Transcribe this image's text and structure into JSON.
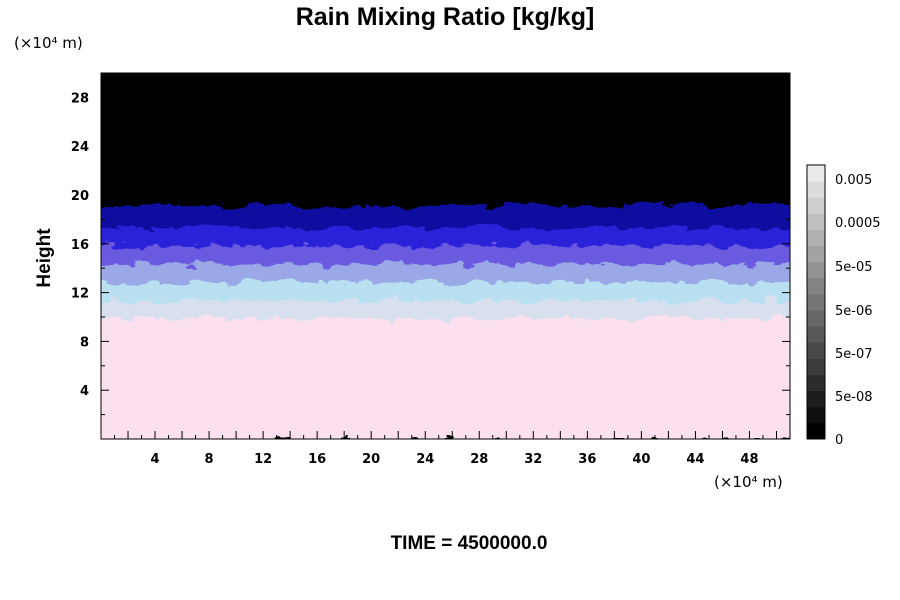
{
  "chart_data": {
    "type": "heatmap",
    "title": "Rain Mixing Ratio [kg/kg]",
    "ylabel": "Height",
    "y_unit": "(×10⁴ m)",
    "x_unit": "(×10⁴ m)",
    "xlim": [
      0,
      51
    ],
    "ylim": [
      0,
      30
    ],
    "x_ticks": [
      4,
      8,
      12,
      16,
      20,
      24,
      28,
      32,
      36,
      40,
      44,
      48
    ],
    "y_ticks": [
      4,
      8,
      12,
      16,
      20,
      24,
      28
    ],
    "colorbar": {
      "labels": [
        "0.005",
        "0.0005",
        "5e-05",
        "5e-06",
        "5e-07",
        "5e-08",
        "0"
      ],
      "levels": 17
    },
    "bands": [
      {
        "y_from": 0,
        "y_to": 10,
        "color": "#fde0ee"
      },
      {
        "y_from": 10,
        "y_to": 11.5,
        "color": "#d8e0f0"
      },
      {
        "y_from": 11.5,
        "y_to": 13,
        "color": "#b8e0f0"
      },
      {
        "y_from": 13,
        "y_to": 14.5,
        "color": "#9aa8e8"
      },
      {
        "y_from": 14.5,
        "y_to": 16,
        "color": "#6a5ae0"
      },
      {
        "y_from": 16,
        "y_to": 17.5,
        "color": "#2a20d8"
      },
      {
        "y_from": 17.5,
        "y_to": 19.3,
        "color": "#1010a0"
      },
      {
        "y_from": 19.3,
        "y_to": 30,
        "color": "#000000"
      }
    ],
    "footer": "TIME = 4500000.0"
  }
}
